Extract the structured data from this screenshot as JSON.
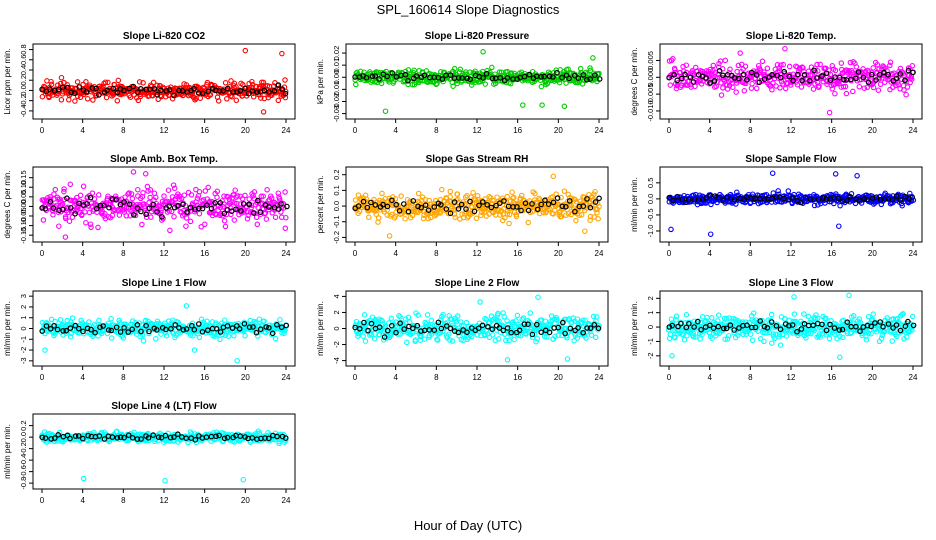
{
  "title": "SPL_160614  Slope Diagnostics",
  "xlabel": "Hour of Day (UTC)",
  "chart_data": [
    {
      "type": "scatter",
      "title": "Slope Li-820 CO2",
      "ylabel": "Licor ppm per min.",
      "color": "#ff0000",
      "xlim": [
        0,
        24
      ],
      "ylim": [
        -0.5,
        0.85
      ],
      "xticks": [
        "0",
        "4",
        "8",
        "12",
        "16",
        "20",
        "24"
      ],
      "yticks": [
        -0.4,
        -0.2,
        0.0,
        0.2,
        0.4,
        0.6,
        0.8
      ],
      "spread": 0.12,
      "outliers": [
        [
          20.0,
          0.78
        ],
        [
          23.6,
          0.72
        ],
        [
          21.8,
          -0.42
        ]
      ]
    },
    {
      "type": "scatter",
      "title": "Slope Li-820 Pressure",
      "ylabel": "kPa per min.",
      "color": "#00cc00",
      "xlim": [
        0,
        24
      ],
      "ylim": [
        -0.032,
        0.025
      ],
      "xticks": [
        "0",
        "4",
        "8",
        "12",
        "16",
        "20",
        "24"
      ],
      "yticks": [
        -0.03,
        -0.02,
        -0.01,
        0.0,
        0.01,
        0.02
      ],
      "spread": 0.004,
      "outliers": [
        [
          3.0,
          -0.028
        ],
        [
          12.6,
          0.021
        ],
        [
          16.5,
          -0.023
        ],
        [
          18.4,
          -0.023
        ],
        [
          20.6,
          -0.024
        ],
        [
          23.4,
          0.016
        ]
      ]
    },
    {
      "type": "scatter",
      "title": "Slope Li-820 Temp.",
      "ylabel": "degrees C per min.",
      "color": "#ff00ff",
      "xlim": [
        0,
        24
      ],
      "ylim": [
        -0.0115,
        0.009
      ],
      "xticks": [
        "0",
        "4",
        "8",
        "12",
        "16",
        "20",
        "24"
      ],
      "yticks": [
        -0.01,
        -0.005,
        0.0,
        0.005
      ],
      "spread": 0.003,
      "outliers": [
        [
          11.4,
          0.0085
        ],
        [
          15.8,
          -0.0105
        ],
        [
          7.0,
          0.0072
        ]
      ]
    },
    {
      "type": "scatter",
      "title": "Slope Amb. Box Temp.",
      "ylabel": "degrees C per min.",
      "color": "#ff00ff",
      "xlim": [
        0,
        24
      ],
      "ylim": [
        -0.17,
        0.19
      ],
      "xticks": [
        "0",
        "4",
        "8",
        "12",
        "16",
        "20",
        "24"
      ],
      "yticks": [
        -0.15,
        -0.1,
        -0.05,
        0.0,
        0.05,
        0.1,
        0.15
      ],
      "spread": 0.06,
      "outliers": [
        [
          9.0,
          0.18
        ],
        [
          10.2,
          0.17
        ],
        [
          2.3,
          -0.16
        ]
      ]
    },
    {
      "type": "scatter",
      "title": "Slope Gas Stream RH",
      "ylabel": "percent per min.",
      "color": "#ffa500",
      "xlim": [
        0,
        24
      ],
      "ylim": [
        -0.21,
        0.23
      ],
      "xticks": [
        "0",
        "4",
        "8",
        "12",
        "16",
        "20",
        "24"
      ],
      "yticks": [
        -0.2,
        -0.1,
        0.0,
        0.1,
        0.2
      ],
      "spread": 0.06,
      "outliers": [
        [
          3.4,
          -0.19
        ],
        [
          19.5,
          0.19
        ],
        [
          22.6,
          -0.16
        ]
      ]
    },
    {
      "type": "scatter",
      "title": "Slope Sample Flow",
      "ylabel": "ml/min per min.",
      "color": "#0000ff",
      "xlim": [
        0,
        24
      ],
      "ylim": [
        -1.25,
        0.9
      ],
      "xticks": [
        "0",
        "4",
        "8",
        "12",
        "16",
        "20",
        "24"
      ],
      "yticks": [
        -1.0,
        -0.5,
        0.0,
        0.5
      ],
      "spread": 0.12,
      "outliers": [
        [
          0.2,
          -0.95
        ],
        [
          4.1,
          -1.1
        ],
        [
          10.2,
          0.8
        ],
        [
          16.4,
          0.78
        ],
        [
          18.5,
          0.72
        ],
        [
          16.7,
          -0.85
        ]
      ]
    },
    {
      "type": "scatter",
      "title": "Slope Line 1 Flow",
      "ylabel": "ml/min per min.",
      "color": "#00ffff",
      "xlim": [
        0,
        24
      ],
      "ylim": [
        -3.2,
        3.2
      ],
      "xticks": [
        "0",
        "4",
        "8",
        "12",
        "16",
        "20",
        "24"
      ],
      "yticks": [
        -3,
        -2,
        -1,
        0,
        1,
        2,
        3
      ],
      "spread": 0.55,
      "outliers": [
        [
          14.2,
          2.1
        ],
        [
          15.0,
          -2.0
        ],
        [
          19.2,
          -3.0
        ],
        [
          0.3,
          -2.0
        ]
      ]
    },
    {
      "type": "scatter",
      "title": "Slope Line 2 Flow",
      "ylabel": "ml/min per min.",
      "color": "#00ffff",
      "xlim": [
        0,
        24
      ],
      "ylim": [
        -4.3,
        4.3
      ],
      "xticks": [
        "0",
        "4",
        "8",
        "12",
        "16",
        "20",
        "24"
      ],
      "yticks": [
        -4,
        -2,
        0,
        2,
        4
      ],
      "spread": 1.1,
      "outliers": [
        [
          18.0,
          3.9
        ],
        [
          15.0,
          -3.9
        ],
        [
          20.9,
          -3.8
        ],
        [
          12.3,
          3.3
        ]
      ]
    },
    {
      "type": "scatter",
      "title": "Slope Line 3 Flow",
      "ylabel": "ml/min per min.",
      "color": "#00ffff",
      "xlim": [
        0,
        24
      ],
      "ylim": [
        -2.5,
        2.3
      ],
      "xticks": [
        "0",
        "4",
        "8",
        "12",
        "16",
        "20",
        "24"
      ],
      "yticks": [
        -2,
        -1,
        0,
        1,
        2
      ],
      "spread": 0.6,
      "outliers": [
        [
          12.3,
          2.1
        ],
        [
          17.7,
          2.2
        ],
        [
          0.3,
          -2.0
        ],
        [
          16.8,
          -2.1
        ]
      ]
    },
    {
      "type": "scatter",
      "title": "Slope Line 4 (LT) Flow",
      "ylabel": "ml/min per min.",
      "color": "#00ffff",
      "xlim": [
        0,
        24
      ],
      "ylim": [
        -0.85,
        0.35
      ],
      "xticks": [
        "0",
        "4",
        "8",
        "12",
        "16",
        "20",
        "24"
      ],
      "yticks": [
        -0.8,
        -0.6,
        -0.4,
        -0.2,
        0.0,
        0.2
      ],
      "spread": 0.06,
      "outliers": [
        [
          4.1,
          -0.72
        ],
        [
          12.1,
          -0.76
        ],
        [
          19.8,
          -0.74
        ]
      ]
    }
  ]
}
